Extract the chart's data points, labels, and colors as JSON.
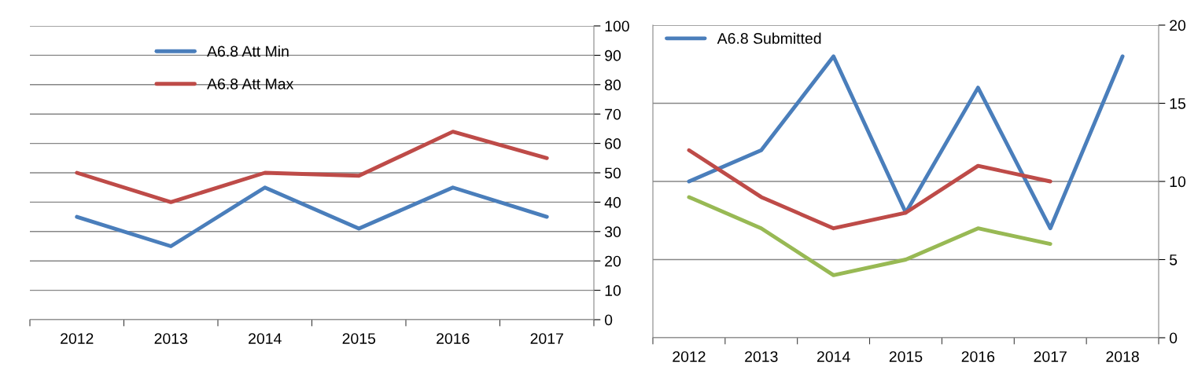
{
  "chart_data": [
    {
      "type": "line",
      "categories": [
        "2012",
        "2013",
        "2014",
        "2015",
        "2016",
        "2017"
      ],
      "ylim": [
        0,
        100
      ],
      "yticks": [
        0,
        10,
        20,
        30,
        40,
        50,
        60,
        70,
        80,
        90,
        100
      ],
      "grid": "y",
      "legend": "top left",
      "series": [
        {
          "name": "A6.8 Att Min",
          "color": "#4a7ebb",
          "values": [
            35,
            25,
            45,
            31,
            45,
            35
          ]
        },
        {
          "name": "A6.8 Att Max",
          "color": "#be4b48",
          "values": [
            50,
            40,
            50,
            49,
            64,
            55
          ]
        }
      ]
    },
    {
      "type": "line",
      "categories": [
        "2012",
        "2013",
        "2014",
        "2015",
        "2016",
        "2017",
        "2018"
      ],
      "ylim": [
        0,
        20
      ],
      "yticks": [
        0,
        5,
        10,
        15,
        20
      ],
      "grid": "y",
      "legend": "top left",
      "series": [
        {
          "name": "A6.8 Submitted",
          "color": "#4a7ebb",
          "values": [
            10,
            12,
            18,
            8,
            16,
            7,
            18
          ]
        },
        {
          "color": "#be4b48",
          "values": [
            12,
            9,
            7,
            8,
            11,
            10,
            null
          ]
        },
        {
          "color": "#98b954",
          "values": [
            9,
            7,
            4,
            5,
            7,
            6,
            null
          ]
        }
      ]
    }
  ]
}
